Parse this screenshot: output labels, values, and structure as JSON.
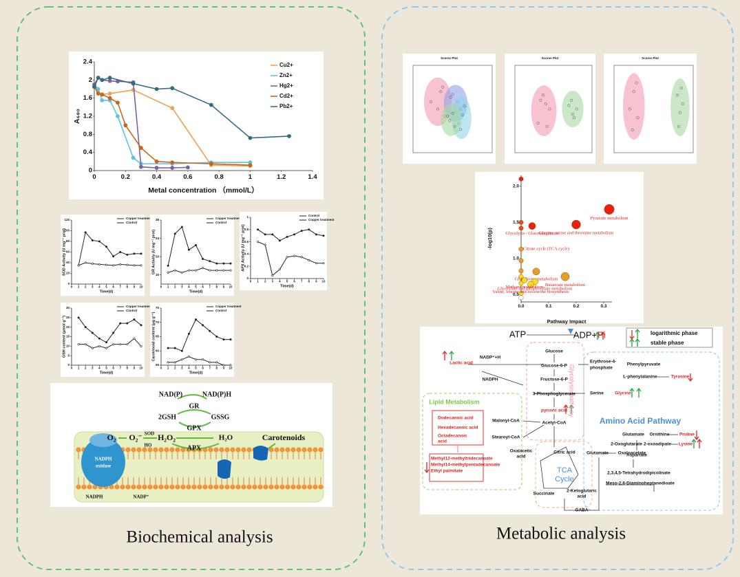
{
  "captions": {
    "left": "Biochemical analysis",
    "right": "Metabolic analysis"
  },
  "chart_data": [
    {
      "type": "line",
      "ylabel": "A₆₈₀",
      "xlabel": "Metal concentration （mmol/L）",
      "xlim": [
        0,
        1.4
      ],
      "ylim": [
        0,
        2.4
      ],
      "xticks": [
        0,
        0.2,
        0.4,
        0.6,
        0.8,
        1,
        1.2,
        1.4
      ],
      "yticks": [
        0,
        0.4,
        0.8,
        1.2,
        1.6,
        2,
        2.4
      ],
      "legend": "top-right",
      "series": [
        {
          "name": "Cu2+",
          "color": "#f0a055",
          "x": [
            0,
            0.025,
            0.05,
            0.1,
            0.25,
            0.5,
            0.75,
            1.0
          ],
          "values": [
            1.9,
            1.72,
            1.68,
            1.7,
            1.78,
            1.38,
            0.12,
            0.1
          ]
        },
        {
          "name": "Zn2+",
          "color": "#5bc3e0",
          "x": [
            0,
            0.025,
            0.05,
            0.1,
            0.15,
            0.25,
            0.3,
            0.5,
            0.75,
            1.0
          ],
          "values": [
            1.9,
            1.8,
            1.55,
            1.55,
            1.2,
            0.28,
            0.15,
            0.15,
            0.18,
            0.18
          ]
        },
        {
          "name": "Hg2+",
          "color": "#7f5fa5",
          "x": [
            0,
            0.025,
            0.05,
            0.1,
            0.15,
            0.25,
            0.3,
            0.4,
            0.5,
            0.6
          ],
          "values": [
            1.9,
            2.05,
            2.0,
            1.98,
            1.97,
            1.95,
            0.08,
            0.06,
            0.06,
            0.07
          ]
        },
        {
          "name": "Cd2+",
          "color": "#c8651c",
          "x": [
            0,
            0.025,
            0.05,
            0.1,
            0.15,
            0.2,
            0.3,
            0.4,
            0.5,
            0.75,
            1.0
          ],
          "values": [
            1.85,
            1.7,
            1.68,
            1.6,
            1.5,
            1.0,
            0.5,
            0.2,
            0.18,
            0.15,
            0.12
          ]
        },
        {
          "name": "Pb2+",
          "color": "#2f6f7e",
          "x": [
            0,
            0.025,
            0.05,
            0.1,
            0.25,
            0.4,
            0.5,
            0.75,
            1.0,
            1.25
          ],
          "values": [
            1.85,
            2.05,
            2.0,
            2.05,
            1.92,
            1.8,
            1.82,
            1.45,
            0.72,
            0.76
          ]
        }
      ]
    },
    {
      "type": "line",
      "ylabel": "SOD Activity (U mg⁻¹ prot)",
      "xlabel": "Time(d)",
      "xlim": [
        0,
        10
      ],
      "ylim": [
        0,
        120
      ],
      "xticks": [
        0,
        1,
        2,
        3,
        4,
        5,
        6,
        7,
        8,
        9,
        10
      ],
      "yticks": [
        0,
        20,
        40,
        60,
        80,
        100,
        120
      ],
      "legend": "top-right",
      "x": [
        1,
        2,
        3,
        4,
        5,
        6,
        7,
        8,
        9,
        10
      ],
      "series": [
        {
          "name": "Copper treatment",
          "color": "#222222",
          "values": [
            35,
            97,
            82,
            80,
            70,
            52,
            60,
            55,
            57,
            57
          ]
        },
        {
          "name": "Control",
          "color": "#222222",
          "values": [
            35,
            40,
            38,
            37,
            36,
            35,
            37,
            36,
            35,
            35
          ]
        }
      ]
    },
    {
      "type": "line",
      "ylabel": "GR Activity (U mg⁻¹ prot)",
      "xlabel": "Time(d)",
      "xlim": [
        0,
        10
      ],
      "ylim": [
        14,
        28
      ],
      "xticks": [
        0,
        1,
        2,
        3,
        4,
        5,
        6,
        7,
        8,
        9,
        10
      ],
      "yticks": [
        16,
        20,
        24,
        28
      ],
      "legend": "top-right",
      "x": [
        1,
        2,
        3,
        4,
        5,
        6,
        7,
        8,
        9,
        10
      ],
      "series": [
        {
          "name": "Copper treatment",
          "color": "#222222",
          "values": [
            18,
            25,
            26.5,
            21.5,
            22.5,
            19.5,
            19,
            18.5,
            18.5,
            18.5
          ]
        },
        {
          "name": "Control",
          "color": "#222222",
          "values": [
            16.5,
            17,
            16.5,
            17,
            17,
            17.5,
            17,
            17,
            17,
            17
          ]
        }
      ]
    },
    {
      "type": "line",
      "ylabel": "APX Activity (U mg⁻¹ prot)",
      "xlabel": "Time(d)",
      "xlim": [
        0,
        10
      ],
      "ylim": [
        0,
        1
      ],
      "xticks": [
        0,
        1,
        2,
        3,
        4,
        5,
        6,
        7,
        8,
        9,
        10
      ],
      "yticks": [
        0,
        0.2,
        0.4,
        0.6,
        0.8,
        1
      ],
      "legend": "top-right",
      "x": [
        1,
        2,
        3,
        4,
        5,
        6,
        7,
        8,
        9,
        10
      ],
      "series": [
        {
          "name": "Control",
          "color": "#222222",
          "values": [
            0.8,
            0.72,
            0.72,
            0.62,
            0.68,
            0.72,
            0.78,
            0.8,
            0.72,
            0.7
          ]
        },
        {
          "name": "Copper treatment",
          "color": "#222222",
          "values": [
            0.6,
            0.55,
            0.05,
            0.15,
            0.35,
            0.37,
            0.35,
            0.3,
            0.25,
            0.25
          ]
        }
      ]
    },
    {
      "type": "line",
      "ylabel": "GSH content (μmol g⁻¹)",
      "xlabel": "Time(d)",
      "xlim": [
        0,
        10
      ],
      "ylim": [
        0,
        30
      ],
      "xticks": [
        0,
        1,
        2,
        3,
        4,
        5,
        6,
        7,
        8,
        9,
        10
      ],
      "yticks": [
        0,
        5,
        10,
        15,
        20,
        25,
        30
      ],
      "legend": "top-right",
      "x": [
        1,
        2,
        3,
        4,
        5,
        6,
        7,
        8,
        9,
        10
      ],
      "series": [
        {
          "name": "Copper treatment",
          "color": "#222222",
          "values": [
            25,
            20,
            17,
            14,
            12,
            17,
            22,
            22,
            24,
            21
          ]
        },
        {
          "name": "Control",
          "color": "#222222",
          "values": [
            11,
            11,
            9,
            10,
            9,
            11,
            11,
            11,
            14,
            10
          ]
        }
      ]
    },
    {
      "type": "line",
      "ylabel": "Carotenoid content (μg g⁻¹)",
      "xlabel": "Time(d)",
      "xlim": [
        0,
        10
      ],
      "ylim": [
        55,
        75
      ],
      "xticks": [
        0,
        1,
        2,
        3,
        4,
        5,
        6,
        7,
        8,
        9,
        10
      ],
      "yticks": [
        55,
        60,
        65,
        70,
        75
      ],
      "legend": "top-right",
      "x": [
        1,
        2,
        3,
        4,
        5,
        6,
        7,
        8,
        9,
        10
      ],
      "series": [
        {
          "name": "Copper treatment",
          "color": "#222222",
          "values": [
            61,
            61,
            60,
            66,
            71,
            69,
            67,
            65,
            64,
            64
          ]
        },
        {
          "name": "Control",
          "color": "#222222",
          "values": [
            56,
            56,
            57,
            58,
            57,
            57,
            56,
            56,
            55,
            55
          ]
        }
      ]
    },
    {
      "type": "scatter",
      "title": "Scores Plot",
      "xlim": [
        -40,
        40
      ],
      "ylim": [
        -30,
        30
      ],
      "ellipses": true,
      "series": [
        {
          "color": "#f29bb3",
          "x": [
            -22,
            -12,
            -8,
            -10,
            -15
          ],
          "values": [
            5,
            12,
            -5,
            15,
            0
          ]
        },
        {
          "color": "#8fa3e8",
          "x": [
            0,
            5,
            8,
            -2,
            3
          ],
          "values": [
            10,
            5,
            0,
            8,
            -2
          ]
        },
        {
          "color": "#8fd6ea",
          "x": [
            6,
            10,
            12,
            8
          ],
          "values": [
            -10,
            -4,
            2,
            -14
          ]
        },
        {
          "color": "#a6d9a2",
          "x": [
            -3,
            2,
            -5,
            0
          ],
          "values": [
            -8,
            -12,
            -5,
            -3
          ]
        }
      ]
    },
    {
      "type": "scatter",
      "title": "Scores Plot",
      "xlim": [
        -30,
        30
      ],
      "ylim": [
        -25,
        25
      ],
      "ellipses": true,
      "series": [
        {
          "color": "#f29bb3",
          "x": [
            -10,
            -5,
            -8,
            -3,
            -12,
            -6
          ],
          "values": [
            5,
            -10,
            8,
            0,
            -8,
            3
          ]
        },
        {
          "color": "#a6d9a2",
          "x": [
            12,
            15,
            14,
            18,
            16
          ],
          "values": [
            2,
            -3,
            5,
            0,
            -5
          ]
        }
      ]
    },
    {
      "type": "scatter",
      "title": "Scores Plot",
      "xlim": [
        -30,
        30
      ],
      "ylim": [
        -25,
        25
      ],
      "ellipses": true,
      "series": [
        {
          "color": "#f29bb3",
          "x": [
            -15,
            -12,
            -18,
            -13,
            -16
          ],
          "values": [
            10,
            -5,
            0,
            15,
            -12
          ]
        },
        {
          "color": "#a6d9a2",
          "x": [
            18,
            20,
            22,
            19,
            21
          ],
          "values": [
            8,
            -2,
            3,
            -10,
            12
          ]
        }
      ]
    },
    {
      "type": "scatter",
      "xlabel": "Pathway Impact",
      "ylabel": "-log10(p)",
      "xlim": [
        0,
        0.33
      ],
      "ylim": [
        0.4,
        2.15
      ],
      "xticks": [
        {
          "value": 0,
          "label": "0.0"
        },
        0.1,
        0.2,
        0.3
      ],
      "yticks": [
        0.5,
        {
          "value": 1,
          "label": "1.0"
        },
        1.5,
        {
          "value": 2,
          "label": "2.0"
        }
      ],
      "series": [
        {
          "x": [
            0,
            0,
            0,
            0,
            0,
            0,
            0,
            0,
            0,
            0,
            0.32,
            0.2,
            0.04,
            0.055,
            0.16,
            0.05,
            0.035,
            0.012
          ],
          "values": [
            2.1,
            1.5,
            1.42,
            1.13,
            0.97,
            0.83,
            0.75,
            0.66,
            0.52,
            0.46,
            1.68,
            1.47,
            1.45,
            0.82,
            0.75,
            0.68,
            0.64,
            0.7
          ],
          "sizes": [
            2,
            2,
            2,
            2,
            2,
            2,
            2,
            2,
            2,
            2,
            10,
            8,
            5,
            5,
            7,
            4,
            4,
            3
          ],
          "colors": [
            "#e8200c",
            "#d9531e",
            "#d9531e",
            "#e0a020",
            "#e0a020",
            "#e0a020",
            "#f5e020",
            "#f5e020",
            "#f5e020",
            "#ffffff",
            "#e8200c",
            "#e8200c",
            "#e8200c",
            "#e0a020",
            "#e0a020",
            "#f5e020",
            "#f5e020",
            "#f5e020"
          ],
          "labels": [
            null,
            null,
            null,
            "Citrate cycle (TCA cycle)",
            null,
            null,
            null,
            null,
            null,
            null,
            "Pyruvate metabolism",
            "Glycine, serine and threonine metabolism",
            "Glycolysis / Gluconeogenesis",
            "Glutathione metabolism",
            "Butanoate metabolism",
            "Glyoxylate and dicarboxylate metabolism",
            "Valine, leucine and isoleucine biosynthesis",
            "Methane metabolism"
          ]
        }
      ]
    }
  ],
  "antioxidant_diagram": {
    "nadp": "NAD(P)",
    "nadph": "NAD(P)H",
    "gr": "GR",
    "gsh": "2GSH",
    "gssg": "GSSG",
    "gpx": "GPX",
    "o2": "O₂",
    "o2r": "O₂⁻",
    "sod": "SOD",
    "h2o2": "H₂O₂",
    "h2o": "H₂O",
    "apx": "APX",
    "ho": "HO",
    "carotenoids": "Carotenoids",
    "oxidase1": "NADPH",
    "oxidase2": "oxidase",
    "nadph_bottom": "NADPH",
    "nadp_plus": "NADP⁺"
  },
  "pathway_map": {
    "legend": [
      "logarithmic phase",
      "stable phase"
    ],
    "groups": {
      "glycolysis": "Glycolysis pathway",
      "lipid": "Lipid Metabolism",
      "amino": "Amino Acid Pathway",
      "tca": [
        "TCA",
        "Cycle"
      ]
    },
    "nodes": [
      "ATP",
      "ADP+",
      "Pi",
      "Glucose",
      "Glucose-6-P",
      "Fructose-6-P",
      "3-Phosphoglycerate",
      "pyruvic acid",
      "Acetyl-CoA",
      "Lactic acid",
      "NADP⁺+H",
      "NADPH",
      "Dodecanoic acid",
      "Hexadecanoic acid",
      "Octadecanoic",
      "acid",
      "Methyl12-methyltridecanoate",
      "Methyl14-methylpentadecanoate",
      "Ethyl palmitate",
      "Malonyl-CoA",
      "Stearoyl-CoA",
      "Erythrose-4-",
      "phosphate",
      "Phenylpyruvate",
      "L-phenylalanine",
      "Tyrosine",
      "Serine",
      "Glycine",
      "Glutamate",
      "Ornithine",
      "Proline",
      "2-Oxoglutarate",
      "2-oxoadipate",
      "Lysine",
      "Aspartate",
      "2,3,4,5-Tetrahydrodipicolinate",
      "Meso-2,6-Diaminoheptanedioate",
      "Oxalacetic",
      "acid",
      "Citric acid",
      "Succinate",
      "2-Ketoglutaric",
      "acid",
      "Glutamate",
      "Oxaloacetate",
      "GABA"
    ]
  }
}
